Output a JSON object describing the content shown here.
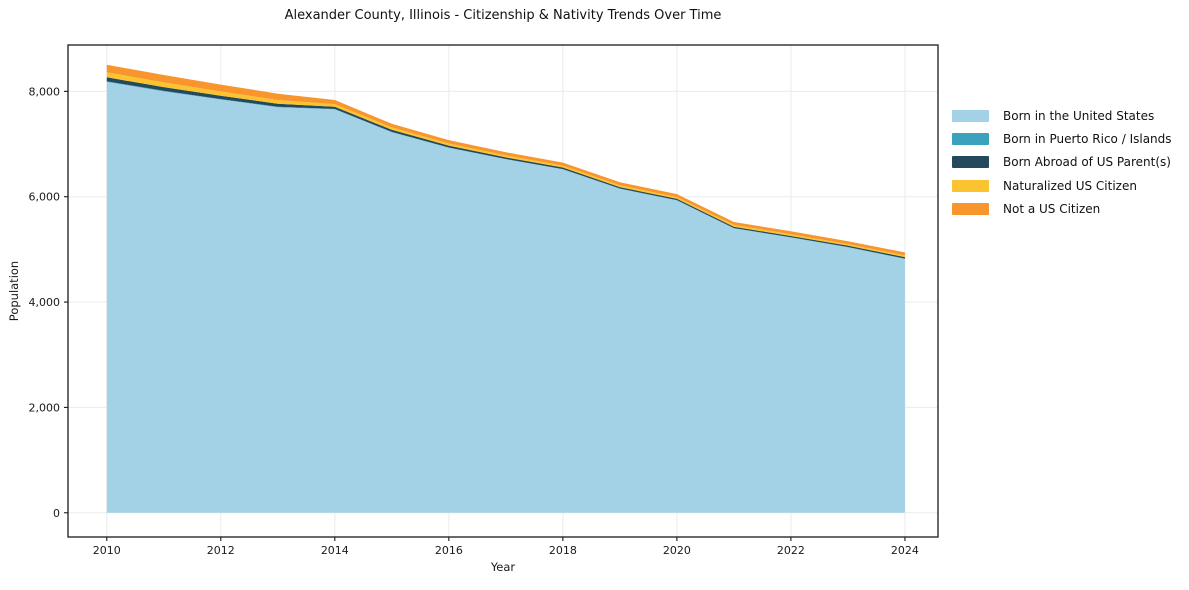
{
  "title": "Alexander County, Illinois - Citizenship & Nativity Trends Over Time",
  "colors": {
    "background": "#ffffff",
    "grid": "#ebebeb",
    "spine": "#1a1a1a",
    "text": "#1a1a1a"
  },
  "chart_data": {
    "type": "area",
    "stacked": true,
    "title": "Alexander County, Illinois - Citizenship & Nativity Trends Over Time",
    "xlabel": "Year",
    "ylabel": "Population",
    "x": [
      2010,
      2011,
      2012,
      2013,
      2014,
      2015,
      2016,
      2017,
      2018,
      2019,
      2020,
      2021,
      2022,
      2023,
      2024
    ],
    "series": [
      {
        "name": "Born in the United States",
        "color": "#a3d1e6",
        "values": [
          8180,
          8000,
          7845,
          7700,
          7660,
          7225,
          6930,
          6710,
          6520,
          6150,
          5930,
          5400,
          5225,
          5040,
          4820
        ]
      },
      {
        "name": "Born in Puerto Rico / Islands",
        "color": "#3aa2bd",
        "values": [
          10,
          10,
          8,
          8,
          5,
          5,
          5,
          5,
          5,
          5,
          5,
          5,
          5,
          5,
          5
        ]
      },
      {
        "name": "Born Abroad of US Parent(s)",
        "color": "#24485c",
        "values": [
          76,
          70,
          65,
          58,
          44,
          40,
          35,
          32,
          30,
          28,
          25,
          26,
          25,
          26,
          28
        ]
      },
      {
        "name": "Naturalized US Citizen",
        "color": "#fcc330",
        "values": [
          95,
          90,
          80,
          70,
          50,
          45,
          40,
          38,
          35,
          33,
          32,
          34,
          33,
          30,
          32
        ]
      },
      {
        "name": "Not a US Citizen",
        "color": "#f8952c",
        "values": [
          144,
          140,
          130,
          120,
          76,
          70,
          65,
          60,
          58,
          57,
          57,
          55,
          55,
          55,
          57
        ]
      }
    ],
    "xticks": [
      2010,
      2012,
      2014,
      2016,
      2018,
      2020,
      2022,
      2024
    ],
    "yticks": [
      0,
      2000,
      4000,
      6000,
      8000
    ],
    "xlim": [
      2009.32,
      2024.58
    ],
    "ylim": [
      -460,
      8880
    ],
    "grid": true,
    "legend_position": "outside-right"
  }
}
